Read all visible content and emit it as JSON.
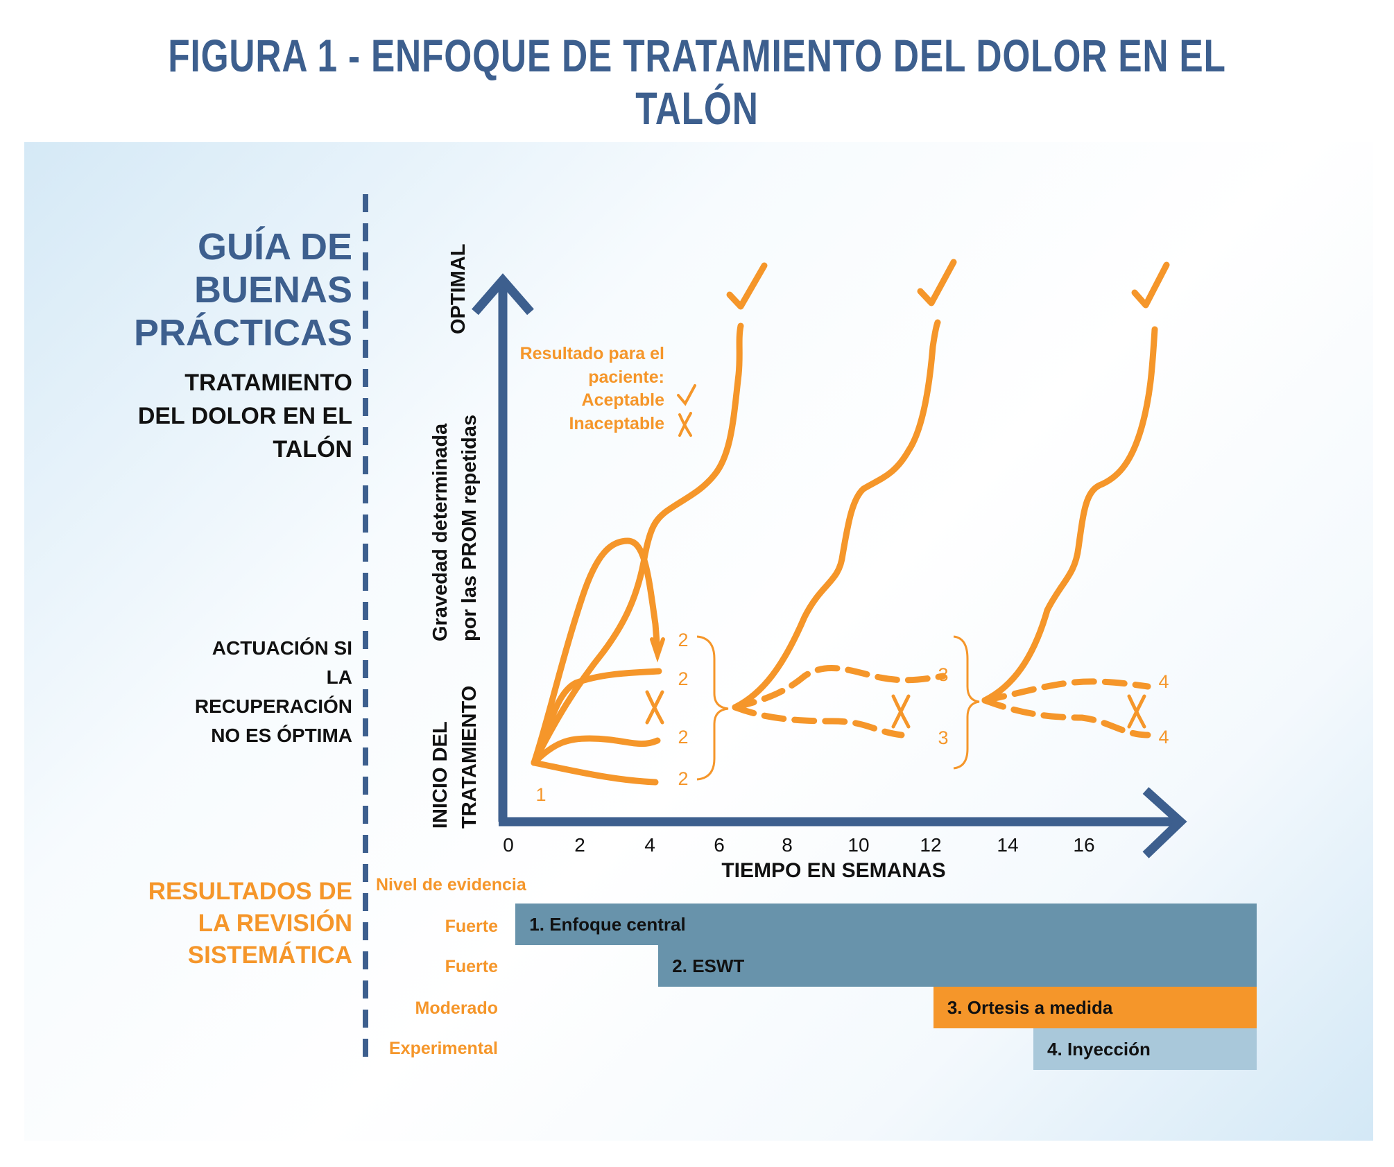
{
  "title": "FIGURA 1 - ENFOQUE DE TRATAMIENTO DEL DOLOR EN EL TALÓN",
  "left_panel": {
    "guide_lines": [
      "GUÍA DE",
      "BUENAS",
      "PRÁCTICAS"
    ],
    "subguide_lines": [
      "TRATAMIENTO",
      "DEL DOLOR EN EL",
      "TALÓN"
    ],
    "action_lines": [
      "ACTUACIÓN SI",
      "LA",
      "RECUPERACIÓN",
      "NO ES ÓPTIMA"
    ],
    "results_lines": [
      "RESULTADOS DE",
      "LA REVISIÓN",
      "SISTEMÁTICA"
    ]
  },
  "chart": {
    "y_axis_top": "OPTIMAL",
    "y_axis_middle": [
      "Gravedad determinada",
      "por las PROM repetidas"
    ],
    "y_axis_bottom": [
      "INICIO DEL",
      "TRATAMIENTO"
    ],
    "x_axis_label": "TIEMPO EN SEMANAS",
    "x_ticks": [
      "0",
      "2",
      "4",
      "6",
      "8",
      "10",
      "12",
      "14",
      "16"
    ],
    "legend": {
      "title_lines": [
        "Resultado para el",
        "paciente:"
      ],
      "acceptable": "Aceptable",
      "unacceptable": "Inaceptable"
    },
    "step_labels": {
      "start": "1",
      "step2": [
        "2",
        "2",
        "2",
        "2"
      ],
      "step3": [
        "3",
        "3"
      ],
      "step4": [
        "4",
        "4"
      ]
    },
    "colors": {
      "axis": "#3d5f8e",
      "path": "#f5962a"
    }
  },
  "evidence": {
    "header": "Nivel de evidencia",
    "rows": [
      {
        "level": "Fuerte",
        "label": "1. Enfoque central",
        "start_week": 0.2,
        "color": "#6893ab"
      },
      {
        "level": "Fuerte",
        "label": "2. ESWT",
        "start_week": 4.2,
        "color": "#6893ab"
      },
      {
        "level": "Moderado",
        "label": "3. Ortesis a medida",
        "start_week": 11.9,
        "color": "#f5962a"
      },
      {
        "level": "Experimental",
        "label": "4. Inyección",
        "start_week": 14.7,
        "color": "#a9c8da"
      }
    ]
  }
}
